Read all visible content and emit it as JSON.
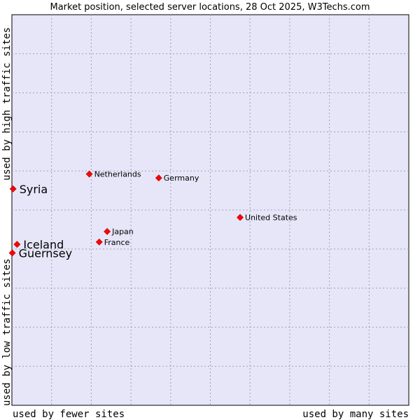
{
  "chart_data": {
    "type": "scatter",
    "title": "Market position, selected server locations, 28 Oct 2025, W3Techs.com",
    "xlabel_left": "used by fewer sites",
    "xlabel_right": "used by many sites",
    "ylabel_bottom": "used by low traffic sites",
    "ylabel_top": "used by high traffic sites",
    "xlim": [
      0,
      10
    ],
    "ylim": [
      0,
      10
    ],
    "grid": true,
    "colors": {
      "background": "#e6e6f8",
      "point": "#ff0000",
      "grid": "#a0a0b8"
    },
    "points": [
      {
        "name": "Netherlands",
        "x": 1.95,
        "y": 5.92,
        "label_size": "small"
      },
      {
        "name": "Germany",
        "x": 3.7,
        "y": 5.82,
        "label_size": "small"
      },
      {
        "name": "Syria",
        "x": 0.03,
        "y": 5.54,
        "label_size": "big"
      },
      {
        "name": "United States",
        "x": 5.75,
        "y": 4.81,
        "label_size": "small"
      },
      {
        "name": "Japan",
        "x": 2.4,
        "y": 4.45,
        "label_size": "small"
      },
      {
        "name": "France",
        "x": 2.2,
        "y": 4.18,
        "label_size": "small"
      },
      {
        "name": "Iceland",
        "x": 0.13,
        "y": 4.12,
        "label_size": "big"
      },
      {
        "name": "Guernsey",
        "x": 0.01,
        "y": 3.9,
        "label_size": "big"
      }
    ]
  }
}
